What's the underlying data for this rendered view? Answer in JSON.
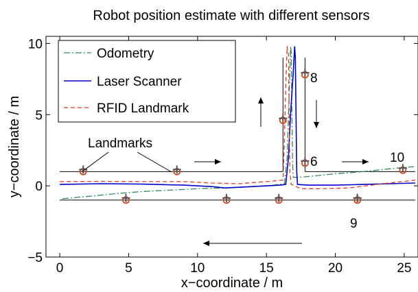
{
  "chart_data": {
    "type": "line",
    "title": "Robot position estimate with different sensors",
    "xlabel": "x−coordinate / m",
    "ylabel": "y−coordinate / m",
    "xlim": [
      -1,
      26
    ],
    "ylim": [
      -5,
      10.5
    ],
    "xticks": [
      0,
      5,
      10,
      15,
      20,
      25
    ],
    "yticks": [
      -5,
      0,
      5,
      10
    ],
    "tick_labels_x": [
      "0",
      "5",
      "10",
      "15",
      "20",
      "25"
    ],
    "tick_labels_y": [
      "−5",
      "0",
      "5",
      "10"
    ],
    "grid": false,
    "legend_position": "top-left",
    "colors": {
      "odometry": "#2e8b57",
      "laser": "#0000cc",
      "rfid": "#e8341c",
      "corridor": "#000000",
      "landmark_circle": "#d04a1a",
      "landmark_plus": "#555555"
    },
    "series": [
      {
        "name": "Odometry",
        "style": "dash-dot",
        "color_key": "odometry",
        "points": [
          [
            0.2,
            -0.9
          ],
          [
            2,
            -0.75
          ],
          [
            4,
            -0.55
          ],
          [
            6,
            -0.4
          ],
          [
            8,
            -0.3
          ],
          [
            10,
            -0.2
          ],
          [
            12,
            -0.15
          ],
          [
            14,
            -0.05
          ],
          [
            15.5,
            0.05
          ],
          [
            16.3,
            0.15
          ],
          [
            16.5,
            2
          ],
          [
            16.6,
            5
          ],
          [
            16.7,
            8
          ],
          [
            16.75,
            9.8
          ],
          [
            16.8,
            9.4
          ],
          [
            16.85,
            5
          ],
          [
            16.9,
            1.6
          ],
          [
            16.95,
            0.6
          ],
          [
            17.2,
            0.6
          ],
          [
            18,
            0.65
          ],
          [
            20,
            0.85
          ],
          [
            22,
            1.0
          ],
          [
            24,
            1.2
          ],
          [
            25.7,
            1.35
          ]
        ]
      },
      {
        "name": "Laser Scanner",
        "style": "solid",
        "color_key": "laser",
        "points": [
          [
            0,
            0.1
          ],
          [
            3,
            0.15
          ],
          [
            6,
            0.12
          ],
          [
            9,
            0.05
          ],
          [
            11,
            -0.05
          ],
          [
            12,
            -0.15
          ],
          [
            14,
            -0.05
          ],
          [
            16,
            0.05
          ],
          [
            16.4,
            0.1
          ],
          [
            16.6,
            2
          ],
          [
            16.75,
            5
          ],
          [
            16.95,
            8
          ],
          [
            17.05,
            9.8
          ],
          [
            17.1,
            9
          ],
          [
            17.15,
            5
          ],
          [
            17.2,
            1
          ],
          [
            17.25,
            0.1
          ],
          [
            18,
            0.05
          ],
          [
            20,
            0.05
          ],
          [
            22,
            0.1
          ],
          [
            24,
            0.15
          ],
          [
            25.8,
            0.2
          ]
        ]
      },
      {
        "name": "RFID Landmark",
        "style": "dashed",
        "color_key": "rfid",
        "points": [
          [
            0,
            0.3
          ],
          [
            3,
            0.32
          ],
          [
            6,
            0.3
          ],
          [
            9,
            0.3
          ],
          [
            11,
            0.2
          ],
          [
            13,
            0.15
          ],
          [
            15,
            0.3
          ],
          [
            16.2,
            0.4
          ],
          [
            16.3,
            3
          ],
          [
            16.4,
            7
          ],
          [
            16.5,
            9.8
          ],
          [
            16.6,
            9.2
          ],
          [
            16.65,
            5
          ],
          [
            16.7,
            1
          ],
          [
            16.8,
            0.1
          ],
          [
            17.5,
            -0.2
          ],
          [
            19,
            -0.2
          ],
          [
            21,
            -0.15
          ],
          [
            23,
            0.1
          ],
          [
            25.8,
            0.4
          ]
        ]
      }
    ],
    "corridor_lines": [
      [
        [
          0,
          1
        ],
        [
          16
        ],
        [
          1
        ]
      ],
      [
        [
          0,
          -1
        ],
        [
          25.8,
          -1
        ]
      ]
    ],
    "landmarks": [
      {
        "label": "",
        "x": 1.7,
        "y": 1.0
      },
      {
        "label": "",
        "x": 8.5,
        "y": 1.0
      },
      {
        "label": "",
        "x": 4.8,
        "y": -1.0
      },
      {
        "label": "",
        "x": 12.1,
        "y": -1.0
      },
      {
        "label": "",
        "x": 15.9,
        "y": -1.0
      },
      {
        "label": "",
        "x": 21.6,
        "y": -1.0
      },
      {
        "label": "",
        "x": 16.2,
        "y": 4.6
      },
      {
        "label": "8",
        "x": 17.8,
        "y": 7.8
      },
      {
        "label": "6",
        "x": 17.8,
        "y": 1.6
      },
      {
        "label": "10",
        "x": 24.9,
        "y": 1.1
      },
      {
        "label": "9",
        "x": 21.6,
        "y": -1.0
      }
    ],
    "annotations": {
      "landmarks_label": "Landmarks",
      "label_8": "8",
      "label_6": "6",
      "label_10": "10",
      "label_9": "9"
    }
  }
}
